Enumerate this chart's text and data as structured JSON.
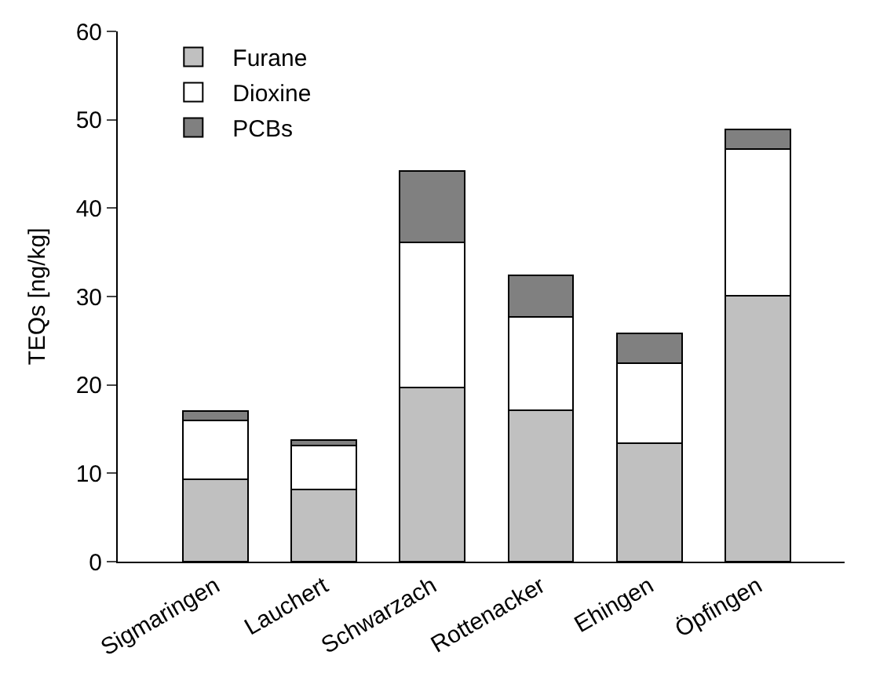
{
  "chart_data": {
    "type": "bar",
    "ylabel": "TEQs [ng/kg]",
    "categories": [
      "Sigmaringen",
      "Lauchert",
      "Schwarzach",
      "Rottenacker",
      "Ehingen",
      "Öpfingen"
    ],
    "stacked": true,
    "series": [
      {
        "name": "Furane",
        "color": "#c0c0c0",
        "values": [
          9.3,
          8.2,
          19.7,
          17.1,
          13.4,
          30.1
        ]
      },
      {
        "name": "Dioxine",
        "color": "#ffffff",
        "values": [
          6.7,
          4.9,
          16.4,
          10.6,
          9.1,
          16.6
        ]
      },
      {
        "name": "PCBs",
        "color": "#808080",
        "values": [
          1.0,
          0.7,
          8.1,
          4.7,
          3.3,
          2.2
        ]
      }
    ],
    "ylim": [
      0,
      60
    ],
    "yticks": [
      0,
      10,
      20,
      30,
      40,
      50,
      60
    ],
    "grid": false,
    "legend": "top left"
  }
}
